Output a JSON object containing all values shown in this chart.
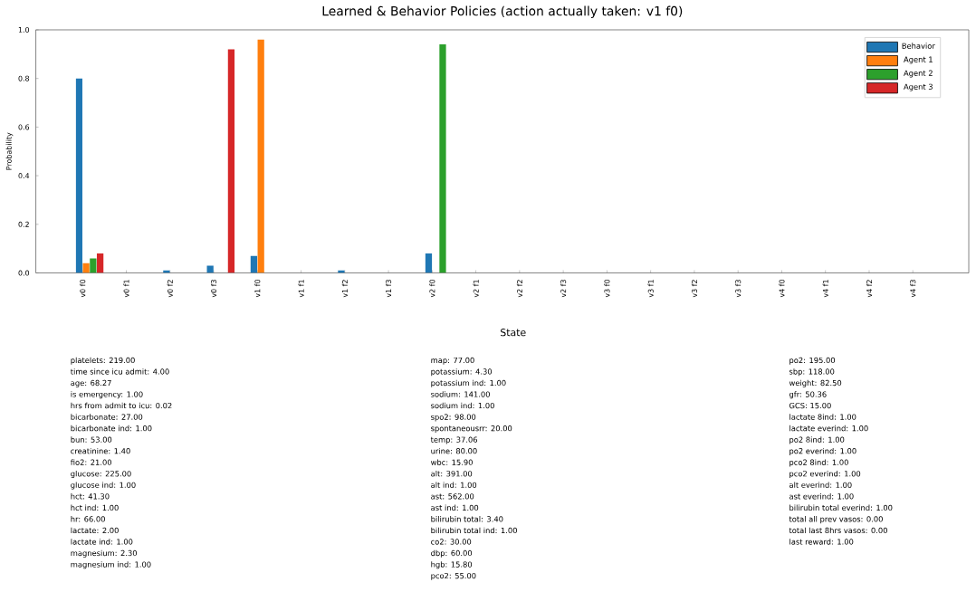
{
  "chart_data": {
    "type": "bar",
    "title": "Learned & Behavior Policies (action actually taken: v1 f0)",
    "ylabel": "Probability",
    "categories": [
      "v0 f0",
      "v0 f1",
      "v0 f2",
      "v0 f3",
      "v1 f0",
      "v1 f1",
      "v1 f2",
      "v1 f3",
      "v2 f0",
      "v2 f1",
      "v2 f2",
      "v2 f3",
      "v3 f0",
      "v3 f1",
      "v3 f2",
      "v3 f3",
      "v4 f0",
      "v4 f1",
      "v4 f2",
      "v4 f3"
    ],
    "series": [
      {
        "name": "Behavior",
        "color": "#1f77b4",
        "values": [
          0.8,
          0,
          0.01,
          0.03,
          0.07,
          0,
          0.01,
          0,
          0.08,
          0,
          0,
          0,
          0,
          0,
          0,
          0,
          0,
          0,
          0,
          0
        ]
      },
      {
        "name": "Agent 1",
        "color": "#ff7f0e",
        "values": [
          0.04,
          0,
          0,
          0,
          0.96,
          0,
          0,
          0,
          0,
          0,
          0,
          0,
          0,
          0,
          0,
          0,
          0,
          0,
          0,
          0
        ]
      },
      {
        "name": "Agent 2",
        "color": "#2ca02c",
        "values": [
          0.06,
          0,
          0,
          0,
          0,
          0,
          0,
          0,
          0.94,
          0,
          0,
          0,
          0,
          0,
          0,
          0,
          0,
          0,
          0,
          0
        ]
      },
      {
        "name": "Agent 3",
        "color": "#d62728",
        "values": [
          0.08,
          0,
          0,
          0.92,
          0,
          0,
          0,
          0,
          0,
          0,
          0,
          0,
          0,
          0,
          0,
          0,
          0,
          0,
          0,
          0
        ]
      }
    ],
    "ylim": [
      0,
      1
    ],
    "yticks": [
      {
        "value": 0,
        "label": "0.0"
      },
      {
        "value": 0.2,
        "label": "0.2"
      },
      {
        "value": 0.4,
        "label": "0.4"
      },
      {
        "value": 0.6,
        "label": "0.6"
      },
      {
        "value": 0.8,
        "label": "0.8"
      },
      {
        "value": 1,
        "label": "1.0"
      }
    ],
    "legend": "top right",
    "annotations": [
      "State",
      "platelets: 219.00",
      "time since icu admit: 4.00",
      "age: 68.27",
      "is emergency: 1.00",
      "hrs from admit to icu: 0.02",
      "bicarbonate: 27.00",
      "bicarbonate ind: 1.00",
      "bun: 53.00",
      "creatinine: 1.40",
      "fio2: 21.00",
      "glucose: 225.00",
      "glucose ind: 1.00",
      "hct: 41.30",
      "hct ind: 1.00",
      "hr: 66.00",
      "lactate: 2.00",
      "lactate ind: 1.00",
      "magnesium: 2.30",
      "magnesium ind: 1.00",
      "map: 77.00",
      "potassium: 4.30",
      "potassium ind: 1.00",
      "sodium: 141.00",
      "sodium ind: 1.00",
      "spo2: 98.00",
      "spontaneousrr: 20.00",
      "temp: 37.06",
      "urine: 80.00",
      "wbc: 15.90",
      "alt: 391.00",
      "alt ind: 1.00",
      "ast: 562.00",
      "ast ind: 1.00",
      "bilirubin total: 3.40",
      "bilirubin total ind: 1.00",
      "co2: 30.00",
      "dbp: 60.00",
      "hgb: 15.80",
      "pco2: 55.00",
      "po2: 195.00",
      "sbp: 118.00",
      "weight: 82.50",
      "gfr: 50.36",
      "GCS: 15.00",
      "lactate 8ind: 1.00",
      "lactate everind: 1.00",
      "po2 8ind: 1.00",
      "po2 everind: 1.00",
      "pco2 8ind: 1.00",
      "pco2 everind: 1.00",
      "alt everind: 1.00",
      "ast everind: 1.00",
      "bilirubin total everind: 1.00",
      "total all prev vasos: 0.00",
      "total last 8hrs vasos: 0.00",
      "last reward: 1.00"
    ]
  }
}
